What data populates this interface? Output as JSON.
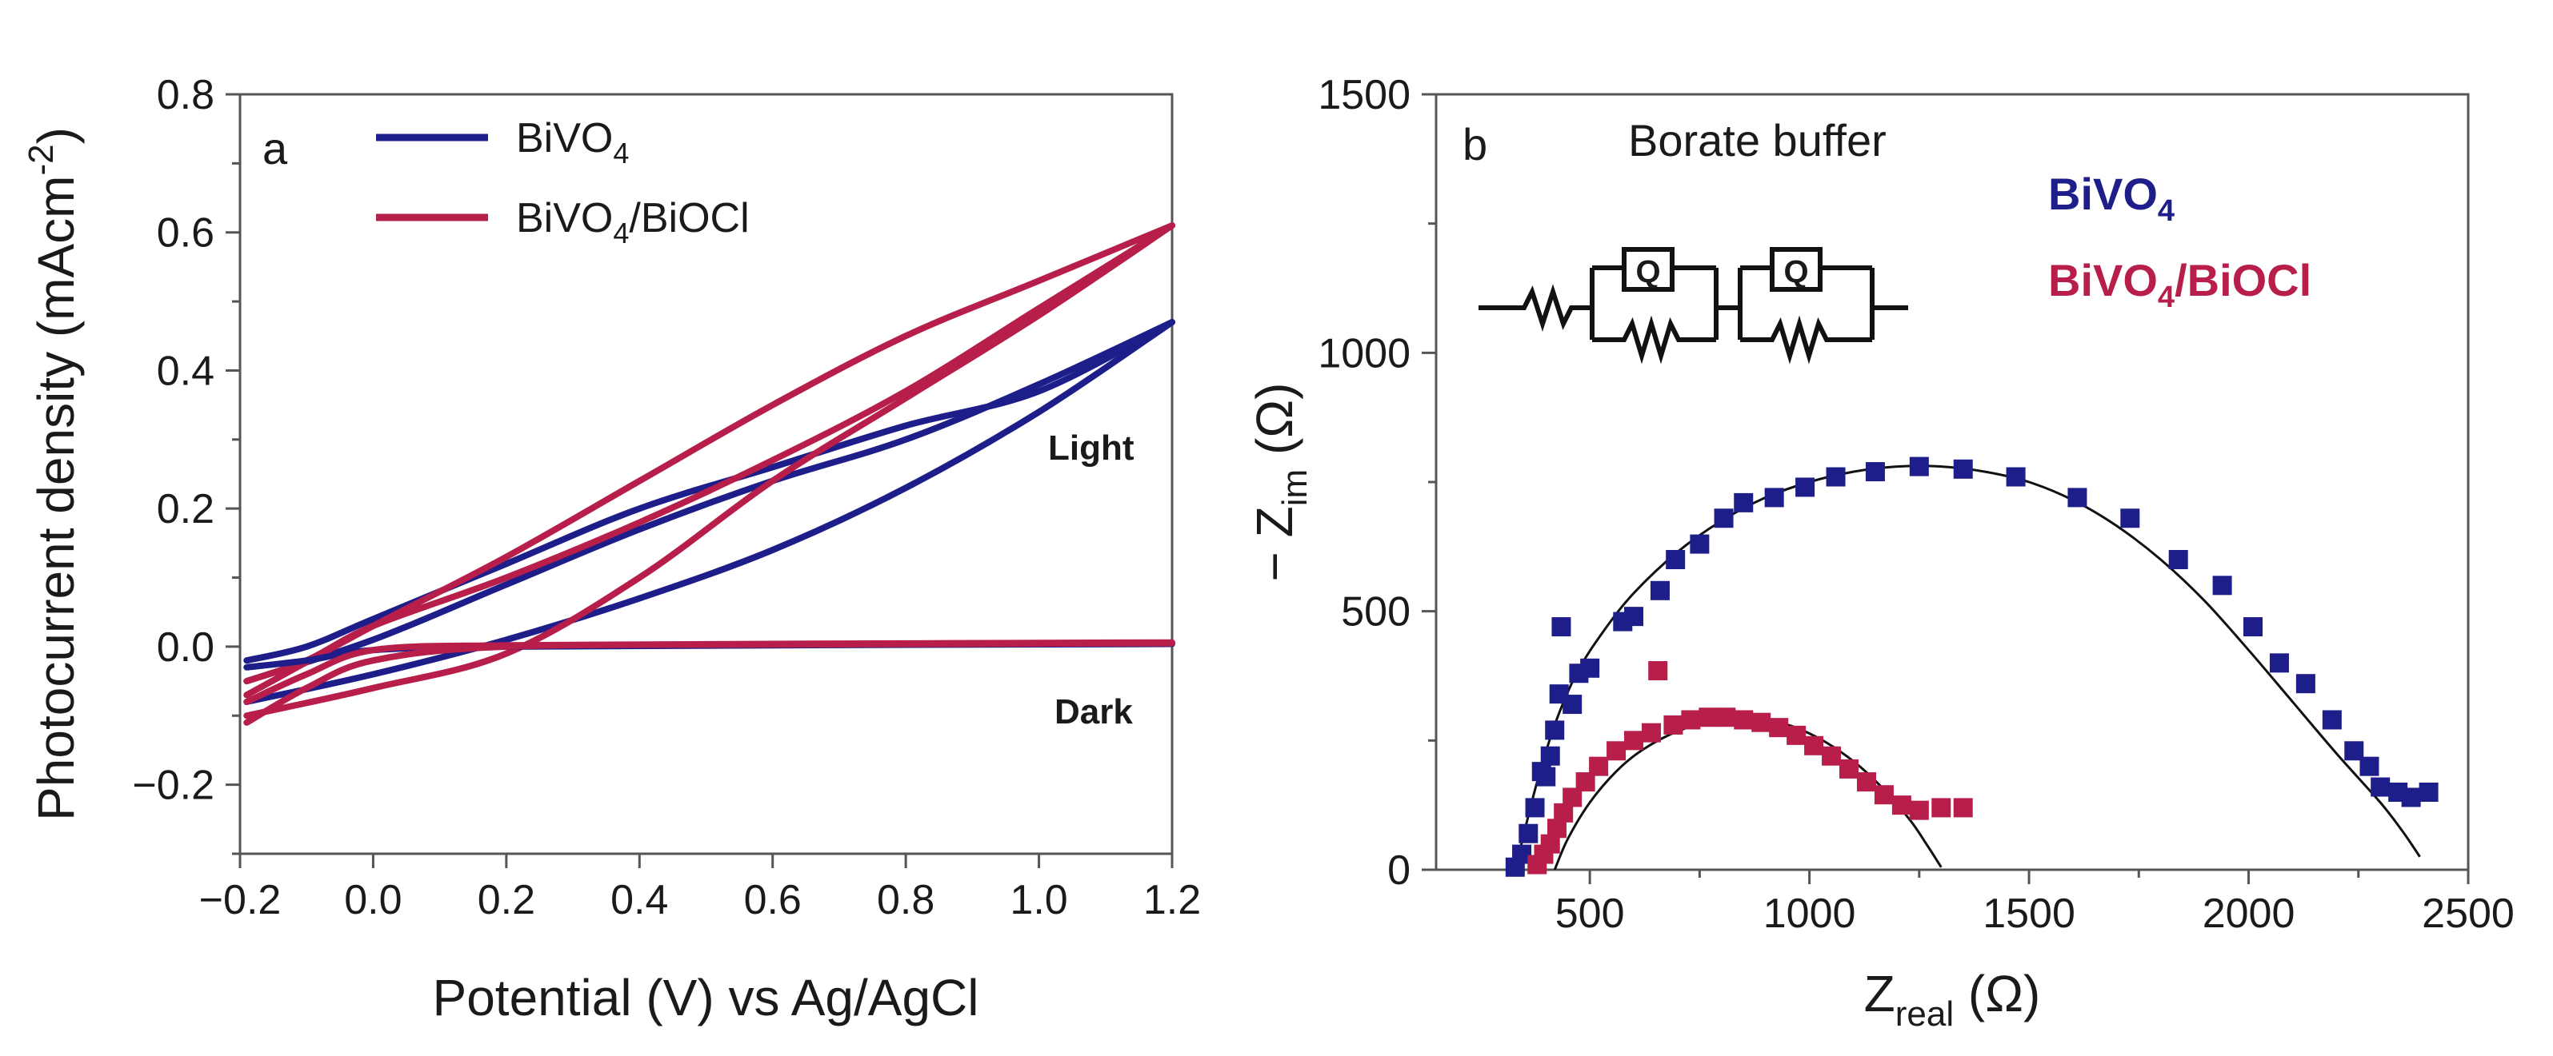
{
  "colors": {
    "BiVO4": "#1e1e8a",
    "BiVO4/BiOCl": "#b81e4a",
    "axis": "#555555",
    "fit": "#111111"
  },
  "chart_data": [
    {
      "panel": "a",
      "type": "line",
      "xlabel": "Potential (V) vs Ag/AgCl",
      "ylabel": "Photocurrent density (mAcm⁻²)",
      "ylabel_main": "Photocurrent density (mAcm",
      "ylabel_sup": "-2",
      "ylabel_tail": ")",
      "xlim": [
        -0.2,
        1.2
      ],
      "ylim": [
        -0.3,
        0.8
      ],
      "xticks": [
        -0.2,
        0.0,
        0.2,
        0.4,
        0.6,
        0.8,
        1.0,
        1.2
      ],
      "xtick_labels": [
        "−0.2",
        "0.0",
        "0.2",
        "0.4",
        "0.6",
        "0.8",
        "1.0",
        "1.2"
      ],
      "yticks": [
        -0.2,
        0.0,
        0.2,
        0.4,
        0.6,
        0.8
      ],
      "ytick_labels": [
        "−0.2",
        "0.0",
        "0.2",
        "0.4",
        "0.6",
        "0.8"
      ],
      "legend_position": "top-left",
      "annotations": [
        {
          "text": "Light",
          "x": 1.03,
          "y": 0.27
        },
        {
          "text": "Dark",
          "x": 1.03,
          "y": -0.11
        }
      ],
      "series": [
        {
          "name": "BiVO4",
          "name_main": "BiVO",
          "name_sub": "4",
          "name_tail": "",
          "condition": "light",
          "loops": [
            {
              "x": [
                -0.19,
                0.0,
                0.2,
                0.4,
                0.6,
                0.8,
                1.0,
                1.2
              ],
              "y": [
                -0.08,
                -0.04,
                0.01,
                0.07,
                0.14,
                0.23,
                0.34,
                0.47
              ]
            },
            {
              "x": [
                1.2,
                1.0,
                0.8,
                0.6,
                0.4,
                0.2,
                0.0,
                -0.1,
                -0.19
              ],
              "y": [
                0.47,
                0.37,
                0.32,
                0.26,
                0.2,
                0.12,
                0.04,
                0.0,
                -0.02
              ]
            },
            {
              "x": [
                -0.19,
                0.0,
                0.2,
                0.4,
                0.6,
                0.8,
                1.0,
                1.2
              ],
              "y": [
                -0.05,
                0.01,
                0.09,
                0.17,
                0.24,
                0.3,
                0.38,
                0.47
              ]
            }
          ]
        },
        {
          "name": "BiVO4/BiOCl",
          "name_main": "BiVO",
          "name_sub": "4",
          "name_tail": "/BiOCl",
          "condition": "light",
          "loops": [
            {
              "x": [
                -0.19,
                0.0,
                0.2,
                0.4,
                0.6,
                0.8,
                1.0,
                1.2
              ],
              "y": [
                -0.1,
                -0.06,
                -0.01,
                0.1,
                0.24,
                0.36,
                0.48,
                0.61
              ]
            },
            {
              "x": [
                1.2,
                1.0,
                0.8,
                0.6,
                0.4,
                0.2,
                0.0,
                -0.1,
                -0.19
              ],
              "y": [
                0.61,
                0.49,
                0.37,
                0.27,
                0.18,
                0.1,
                0.03,
                -0.02,
                -0.05
              ]
            },
            {
              "x": [
                -0.19,
                0.0,
                0.2,
                0.4,
                0.6,
                0.8,
                1.0,
                1.2
              ],
              "y": [
                -0.07,
                0.03,
                0.13,
                0.24,
                0.35,
                0.45,
                0.53,
                0.61
              ]
            }
          ]
        },
        {
          "name": "BiVO4",
          "condition": "dark",
          "loops": [
            {
              "x": [
                -0.19,
                -0.1,
                0.0,
                0.2,
                0.6,
                1.2
              ],
              "y": [
                -0.03,
                -0.02,
                -0.005,
                0.0,
                0.002,
                0.004
              ]
            }
          ]
        },
        {
          "name": "BiVO4/BiOCl",
          "condition": "dark",
          "loops": [
            {
              "x": [
                -0.19,
                -0.1,
                0.0,
                0.2,
                0.6,
                1.2
              ],
              "y": [
                -0.11,
                -0.06,
                -0.02,
                0.0,
                0.003,
                0.005
              ]
            },
            {
              "x": [
                -0.19,
                -0.1,
                0.0,
                0.2,
                0.6,
                1.2
              ],
              "y": [
                -0.08,
                -0.04,
                -0.005,
                0.002,
                0.004,
                0.006
              ]
            }
          ]
        }
      ]
    },
    {
      "panel": "b",
      "type": "scatter",
      "title": "Borate buffer",
      "xlabel_main": "Z",
      "xlabel_sub": "real",
      "xlabel_unit": " (Ω)",
      "ylabel_pre": "− Z",
      "ylabel_sub": "im",
      "ylabel_unit": " (Ω)",
      "xlim": [
        150,
        2500
      ],
      "ylim": [
        0,
        1500
      ],
      "xticks": [
        500,
        1000,
        1500,
        2000,
        2500
      ],
      "yticks": [
        0,
        500,
        1000,
        1500
      ],
      "circuit_labels": [
        "Q",
        "Q"
      ],
      "legend_position": "top-right",
      "series": [
        {
          "name": "BiVO4",
          "name_main": "BiVO",
          "name_sub": "4",
          "name_tail": "",
          "x": [
            330,
            345,
            360,
            375,
            390,
            400,
            410,
            420,
            430,
            435,
            460,
            475,
            500,
            575,
            600,
            660,
            695,
            750,
            805,
            850,
            920,
            990,
            1060,
            1150,
            1250,
            1350,
            1470,
            1610,
            1730,
            1840,
            1940,
            2010,
            2070,
            2130,
            2190,
            2240,
            2275,
            2300,
            2340,
            2370,
            2410
          ],
          "y": [
            5,
            30,
            70,
            120,
            190,
            180,
            220,
            270,
            340,
            470,
            320,
            380,
            390,
            480,
            490,
            540,
            600,
            630,
            680,
            710,
            720,
            740,
            760,
            770,
            780,
            775,
            760,
            720,
            680,
            600,
            550,
            470,
            400,
            360,
            290,
            230,
            200,
            160,
            150,
            140,
            150
          ]
        },
        {
          "name": "BiVO4/BiOCl",
          "name_main": "BiVO",
          "name_sub": "4",
          "name_tail": "/BiOCl",
          "x": [
            380,
            395,
            410,
            425,
            440,
            460,
            490,
            520,
            560,
            600,
            640,
            655,
            690,
            730,
            770,
            810,
            850,
            890,
            930,
            970,
            1010,
            1050,
            1090,
            1130,
            1170,
            1210,
            1250,
            1300,
            1350
          ],
          "y": [
            10,
            30,
            50,
            80,
            110,
            140,
            170,
            200,
            230,
            250,
            265,
            385,
            280,
            290,
            295,
            295,
            290,
            285,
            275,
            260,
            240,
            220,
            195,
            170,
            145,
            125,
            115,
            120,
            120
          ]
        }
      ],
      "fits": [
        {
          "series": "BiVO4",
          "x": [
            330,
            350,
            380,
            420,
            470,
            530,
            600,
            700,
            800,
            900,
            1000,
            1100,
            1200,
            1300,
            1400,
            1500,
            1600,
            1700,
            1800,
            1900,
            2000,
            2100,
            2200,
            2300,
            2350,
            2390
          ],
          "y": [
            0,
            70,
            170,
            280,
            380,
            460,
            535,
            615,
            675,
            720,
            750,
            770,
            780,
            780,
            770,
            750,
            715,
            665,
            600,
            520,
            425,
            325,
            225,
            130,
            75,
            25
          ]
        },
        {
          "series": "BiVO4/BiOCl",
          "x": [
            420,
            450,
            500,
            560,
            620,
            700,
            780,
            860,
            940,
            1020,
            1100,
            1170,
            1230,
            1270,
            1300
          ],
          "y": [
            0,
            60,
            130,
            190,
            232,
            268,
            287,
            292,
            283,
            255,
            210,
            155,
            95,
            45,
            5
          ]
        }
      ]
    }
  ]
}
